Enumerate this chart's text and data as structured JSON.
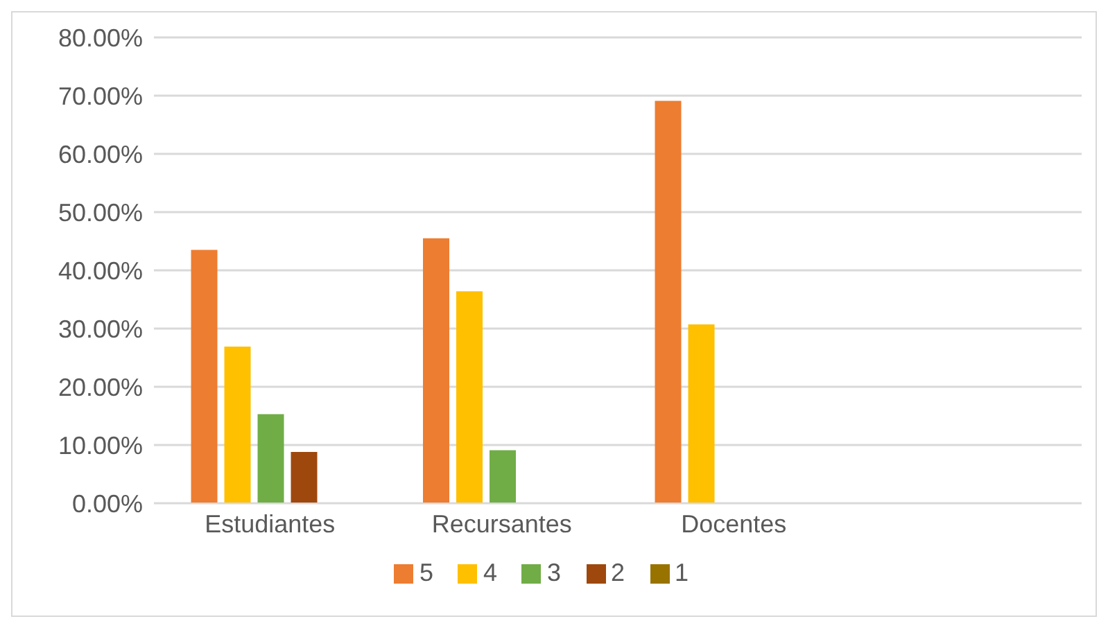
{
  "chart_data": {
    "type": "bar",
    "categories": [
      "Estudiantes",
      "Recursantes",
      "Docentes",
      null
    ],
    "series": [
      {
        "name": "5",
        "color": "#ed7d31",
        "values": [
          43.5,
          45.5,
          69.1,
          null
        ]
      },
      {
        "name": "4",
        "color": "#ffc000",
        "values": [
          26.9,
          36.4,
          30.7,
          null
        ]
      },
      {
        "name": "3",
        "color": "#70ad47",
        "values": [
          15.3,
          9.1,
          null,
          null
        ]
      },
      {
        "name": "2",
        "color": "#9e480e",
        "values": [
          8.8,
          null,
          null,
          null
        ]
      },
      {
        "name": "1",
        "color": "#997300",
        "values": [
          null,
          null,
          null,
          null
        ]
      }
    ],
    "ylim": [
      0,
      80
    ],
    "yticks": [
      {
        "value": 0,
        "label": "0.00%"
      },
      {
        "value": 10,
        "label": "10.00%"
      },
      {
        "value": 20,
        "label": "20.00%"
      },
      {
        "value": 30,
        "label": "30.00%"
      },
      {
        "value": 40,
        "label": "40.00%"
      },
      {
        "value": 50,
        "label": "50.00%"
      },
      {
        "value": 60,
        "label": "60.00%"
      },
      {
        "value": 70,
        "label": "70.00%"
      },
      {
        "value": 80,
        "label": "80.00%"
      }
    ],
    "grid": "y",
    "legend": "bottom"
  }
}
